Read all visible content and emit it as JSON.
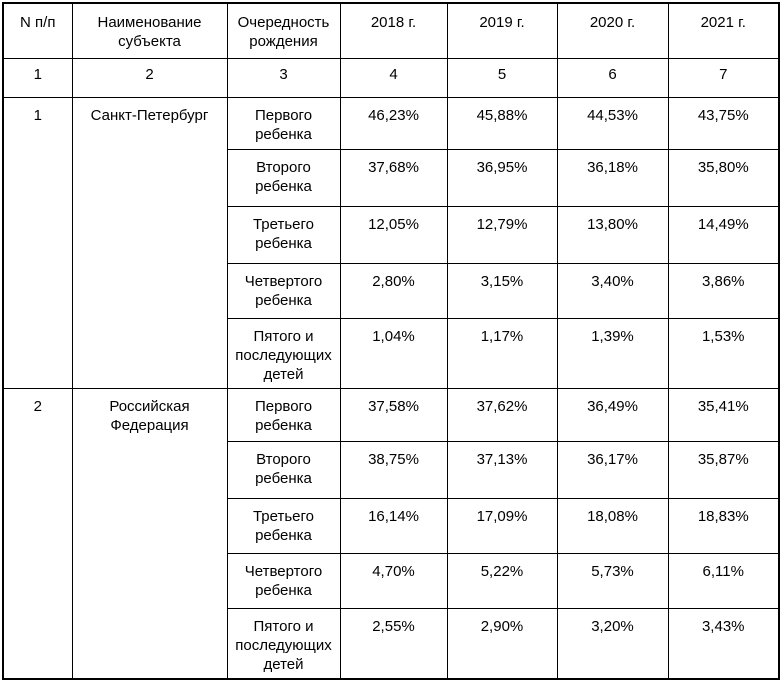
{
  "table": {
    "columns": [
      {
        "label": "N п/п",
        "number": "1"
      },
      {
        "label": "Наименование субъекта",
        "number": "2"
      },
      {
        "label": "Очередность рождения",
        "number": "3"
      },
      {
        "label": "2018 г.",
        "number": "4"
      },
      {
        "label": "2019 г.",
        "number": "5"
      },
      {
        "label": "2020 г.",
        "number": "6"
      },
      {
        "label": "2021 г.",
        "number": "7"
      }
    ],
    "sections": [
      {
        "index": "1",
        "subject": "Санкт-Петербург",
        "rows": [
          {
            "birth_order": "Первого ребенка",
            "values": [
              "46,23%",
              "45,88%",
              "44,53%",
              "43,75%"
            ]
          },
          {
            "birth_order": "Второго ребенка",
            "values": [
              "37,68%",
              "36,95%",
              "36,18%",
              "35,80%"
            ]
          },
          {
            "birth_order": "Третьего ребенка",
            "values": [
              "12,05%",
              "12,79%",
              "13,80%",
              "14,49%"
            ]
          },
          {
            "birth_order": "Четвертого ребенка",
            "values": [
              "2,80%",
              "3,15%",
              "3,40%",
              "3,86%"
            ]
          },
          {
            "birth_order": "Пятого и последующих детей",
            "values": [
              "1,04%",
              "1,17%",
              "1,39%",
              "1,53%"
            ]
          }
        ]
      },
      {
        "index": "2",
        "subject": "Российская Федерация",
        "rows": [
          {
            "birth_order": "Первого ребенка",
            "values": [
              "37,58%",
              "37,62%",
              "36,49%",
              "35,41%"
            ]
          },
          {
            "birth_order": "Второго ребенка",
            "values": [
              "38,75%",
              "37,13%",
              "36,17%",
              "35,87%"
            ]
          },
          {
            "birth_order": "Третьего ребенка",
            "values": [
              "16,14%",
              "17,09%",
              "18,08%",
              "18,83%"
            ]
          },
          {
            "birth_order": "Четвертого ребенка",
            "values": [
              "4,70%",
              "5,22%",
              "5,73%",
              "6,11%"
            ]
          },
          {
            "birth_order": "Пятого и последующих детей",
            "values": [
              "2,55%",
              "2,90%",
              "3,20%",
              "3,43%"
            ]
          }
        ]
      }
    ]
  }
}
